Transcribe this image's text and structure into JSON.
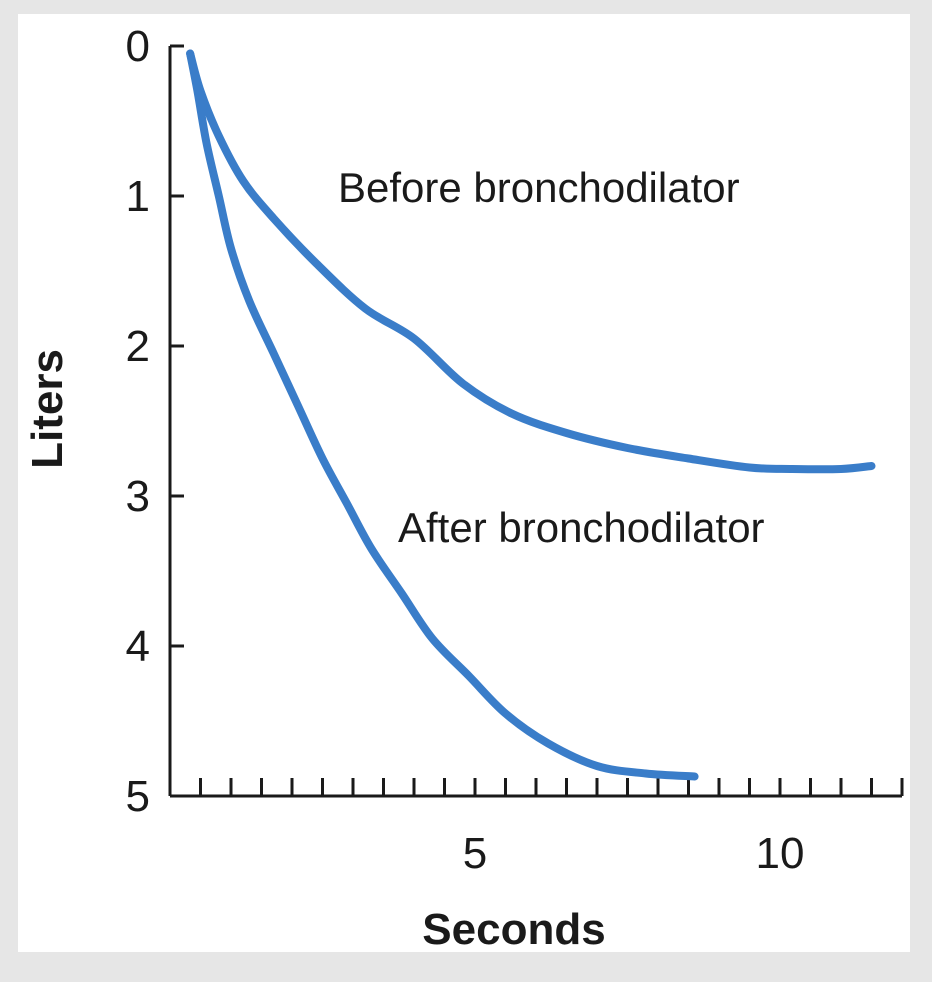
{
  "chart_data": {
    "type": "line",
    "xlabel": "Seconds",
    "ylabel": "Liters",
    "xlim": [
      0,
      12
    ],
    "ylim": [
      0,
      5
    ],
    "y_inverted": true,
    "x_ticks": [
      0.5,
      1,
      1.5,
      2,
      2.5,
      3,
      3.5,
      4,
      4.5,
      5,
      5.5,
      6,
      6.5,
      7,
      7.5,
      8,
      8.5,
      9,
      9.5,
      10,
      10.5,
      11,
      11.5,
      12
    ],
    "x_tick_labels": [
      {
        "value": 5,
        "label": "5"
      },
      {
        "value": 10,
        "label": "10"
      }
    ],
    "y_tick_labels": [
      {
        "value": 0,
        "label": "0"
      },
      {
        "value": 1,
        "label": "1"
      },
      {
        "value": 2,
        "label": "2"
      },
      {
        "value": 3,
        "label": "3"
      },
      {
        "value": 4,
        "label": "4"
      },
      {
        "value": 5,
        "label": "5"
      }
    ],
    "grid": false,
    "line_color": "#3a7dc9",
    "series": [
      {
        "name": "Before bronchodilator",
        "x": [
          0.33,
          0.5,
          0.8,
          1.2,
          1.7,
          2.4,
          3.2,
          4.0,
          4.8,
          5.6,
          6.5,
          7.5,
          8.5,
          9.5,
          10.2,
          11.0,
          11.5
        ],
        "y": [
          0.05,
          0.3,
          0.6,
          0.9,
          1.15,
          1.45,
          1.75,
          1.95,
          2.25,
          2.45,
          2.58,
          2.68,
          2.75,
          2.81,
          2.82,
          2.82,
          2.8
        ]
      },
      {
        "name": "After bronchodilator",
        "x": [
          0.33,
          0.45,
          0.6,
          0.8,
          1.0,
          1.3,
          1.7,
          2.1,
          2.5,
          2.9,
          3.3,
          3.8,
          4.3,
          4.9,
          5.5,
          6.2,
          7.0,
          7.8,
          8.6
        ],
        "y": [
          0.05,
          0.3,
          0.65,
          1.0,
          1.35,
          1.7,
          2.05,
          2.4,
          2.75,
          3.05,
          3.35,
          3.65,
          3.95,
          4.2,
          4.45,
          4.65,
          4.8,
          4.85,
          4.87
        ]
      }
    ]
  }
}
